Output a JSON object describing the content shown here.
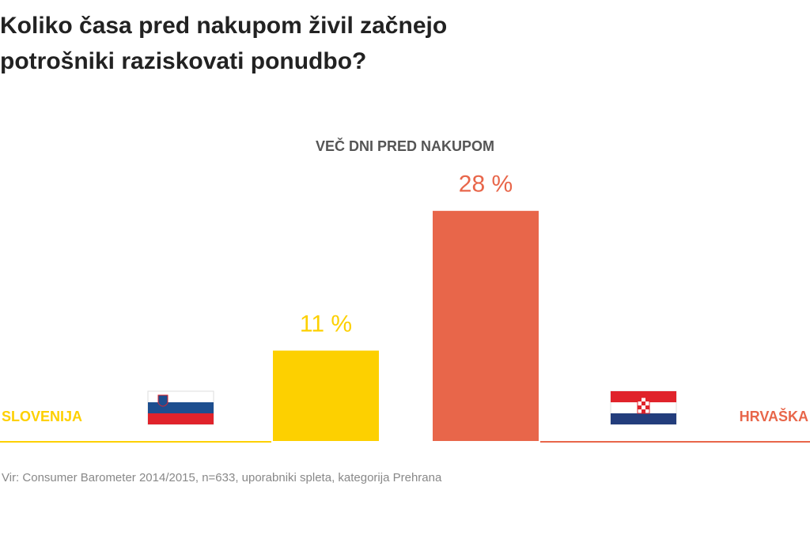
{
  "chart_data": {
    "type": "bar",
    "title": "Koliko časa pred nakupom živil začnejo potrošniki raziskovati ponudbo?",
    "subtitle": "VEČ DNI PRED NAKUPOM",
    "source": "Vir: Consumer Barometer 2014/2015, n=633, uporabniki spleta, kategorija Prehrana",
    "categories": [
      "SLOVENIJA",
      "HRVAŠKA"
    ],
    "values": [
      11,
      28
    ],
    "value_labels": [
      "11 %",
      "28 %"
    ],
    "colors": [
      "#fdd000",
      "#e8664a"
    ]
  }
}
